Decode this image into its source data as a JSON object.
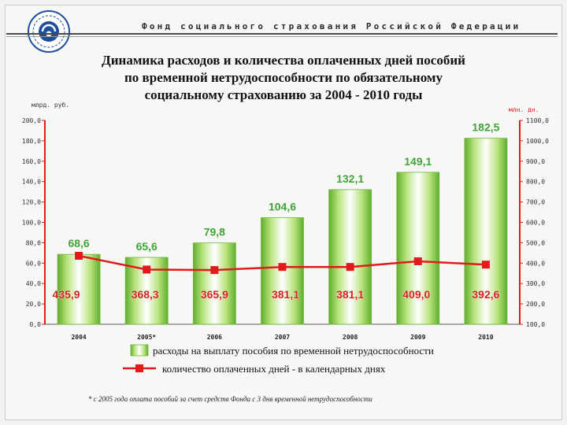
{
  "header": {
    "organization": "Фонд социального страхования Российской Федерации"
  },
  "title_lines": [
    "Динамика расходов и количества оплаченных дней пособий",
    "по временной нетрудоспособности  по обязательному",
    "социальному страхованию за 2004 - 2010 годы"
  ],
  "chart_data": {
    "type": "bar",
    "categories": [
      "2004",
      "2005*",
      "2006",
      "2007",
      "2008",
      "2009",
      "2010"
    ],
    "series": [
      {
        "name": "расходы на выплату пособия по временной нетрудоспособности",
        "kind": "bar",
        "axis": "left",
        "values": [
          68.6,
          65.6,
          79.8,
          104.6,
          132.1,
          149.1,
          182.5
        ],
        "labels": [
          "68,6",
          "65,6",
          "79,8",
          "104,6",
          "132,1",
          "149,1",
          "182,5"
        ],
        "color": "#9ed84a"
      },
      {
        "name": "количество оплаченных дней  - в календарных днях",
        "kind": "line",
        "axis": "right",
        "values": [
          435.9,
          368.3,
          365.9,
          381.1,
          381.1,
          409.0,
          392.6
        ],
        "labels": [
          "435,9",
          "368,3",
          "365,9",
          "381,1",
          "381,1",
          "409,0",
          "392,6"
        ],
        "color": "#e31a1c"
      }
    ],
    "left_axis": {
      "unit": "млрд. руб.",
      "ylim": [
        0,
        200
      ],
      "ticks": [
        "0,0",
        "20,0",
        "40,0",
        "60,0",
        "80,0",
        "100,0",
        "120,0",
        "140,0",
        "160,0",
        "180,0",
        "200,0"
      ]
    },
    "right_axis": {
      "unit": "млн. дн.",
      "ylim": [
        100,
        1100
      ],
      "ticks": [
        "100,0",
        "200,0",
        "300,0",
        "400,0",
        "500,0",
        "600,0",
        "700,0",
        "800,0",
        "900,0",
        "1000,0",
        "1100,0"
      ]
    },
    "grid": false,
    "legend_position": "bottom",
    "bar_label_color": "#3fa336",
    "line_label_color": "#d42020",
    "left_axis_color": "#e31a1c",
    "right_axis_color": "#e31a1c"
  },
  "footnote": "* с 2005 года оплата пособий за счет средств Фонда с 3 дня временной нетрудоспособности"
}
